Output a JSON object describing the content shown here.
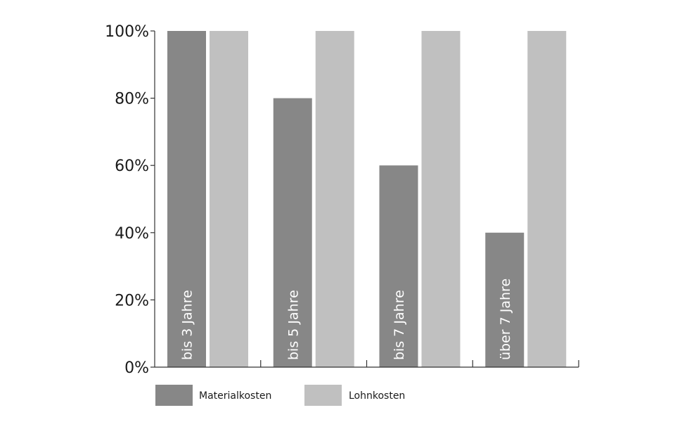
{
  "chart_data": {
    "type": "bar",
    "title": "",
    "xlabel": "",
    "ylabel": "",
    "categories": [
      "bis 3 Jahre",
      "bis 5 Jahre",
      "bis 7 Jahre",
      "über 7 Jahre"
    ],
    "series": [
      {
        "name": "Materialkosten",
        "values": [
          100,
          80,
          60,
          40
        ],
        "color": "#878787"
      },
      {
        "name": "Lohnkosten",
        "values": [
          100,
          100,
          100,
          100
        ],
        "color": "#c0c0c0"
      }
    ],
    "ylim": [
      0,
      100
    ],
    "yticks": [
      0,
      20,
      40,
      60,
      80,
      100
    ],
    "ytick_labels": [
      "0%",
      "20%",
      "40%",
      "60%",
      "80%",
      "100%"
    ],
    "grid": false,
    "legend": "bottom-left",
    "category_label_placement": "inside-first-bar-rotated"
  }
}
